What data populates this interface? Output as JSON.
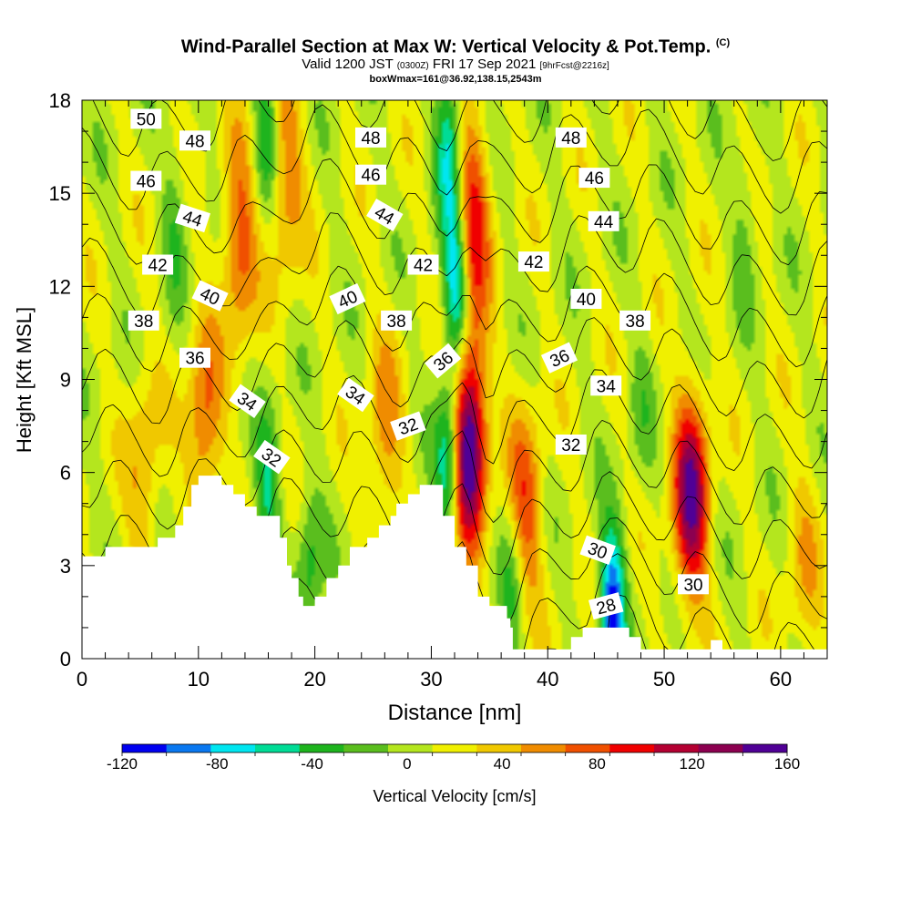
{
  "header": {
    "title_main": "Wind-Parallel Section at Max W: Vertical Velocity & Pot.Temp.",
    "title_copyright": "(C)",
    "valid_prefix": "Valid 1200 JST",
    "valid_utc": "(0300Z)",
    "valid_date": "FRI 17 Sep 2021",
    "forecast_tag": "[9hrFcst@2216z]",
    "box_info": "boxWmax=161@36.92,138.15,2543m"
  },
  "colorbar": {
    "label": "Vertical Velocity [cm/s]",
    "tick_labels": [
      "-120",
      "-80",
      "-40",
      "0",
      "40",
      "80",
      "120",
      "160"
    ],
    "colors": [
      "#0000f0",
      "#0a78f0",
      "#00e6f0",
      "#00dc96",
      "#1eb41e",
      "#5abe1e",
      "#b4e61e",
      "#f0f000",
      "#f0c800",
      "#f08c00",
      "#f05000",
      "#f00000",
      "#b40032",
      "#8c0050",
      "#500096"
    ]
  },
  "chart_data": {
    "type": "heatmap",
    "title": "Wind-Parallel Section at Max W: Vertical Velocity & Pot.Temp.",
    "xlabel": "Distance [nm]",
    "ylabel": "Height [Kft MSL]",
    "xlim": [
      0,
      64
    ],
    "ylim": [
      0,
      18
    ],
    "x_ticks": [
      "0",
      "10",
      "20",
      "30",
      "40",
      "50",
      "60"
    ],
    "y_ticks": [
      "0",
      "3",
      "6",
      "9",
      "12",
      "15",
      "18"
    ],
    "background_w": 10,
    "updrafts": [
      {
        "x": 13.5,
        "y": 13.5,
        "peak": 70
      },
      {
        "x": 10.5,
        "y": 7.5,
        "peak": 65
      },
      {
        "x": 17.5,
        "y": 15.5,
        "peak": 55
      },
      {
        "x": 26,
        "y": 7.2,
        "peak": 45
      },
      {
        "x": 33.2,
        "y": 7,
        "peak": 160
      },
      {
        "x": 33.5,
        "y": 14,
        "peak": 90
      },
      {
        "x": 52.3,
        "y": 5.2,
        "peak": 130
      },
      {
        "x": 38,
        "y": 4.8,
        "peak": 70
      },
      {
        "x": 5.3,
        "y": 6,
        "peak": 40
      },
      {
        "x": 62,
        "y": 3,
        "peak": 30
      }
    ],
    "downdrafts": [
      {
        "x": 16,
        "y": 5.5,
        "peak": -55
      },
      {
        "x": 19.5,
        "y": 2.8,
        "peak": -45
      },
      {
        "x": 15.8,
        "y": 17,
        "peak": -55
      },
      {
        "x": 31.5,
        "y": 6.5,
        "peak": -90
      },
      {
        "x": 32.2,
        "y": 12,
        "peak": -110
      },
      {
        "x": 31.5,
        "y": 16.5,
        "peak": -75
      },
      {
        "x": 45.5,
        "y": 1.6,
        "peak": -120
      },
      {
        "x": 37,
        "y": 2.5,
        "peak": -45
      },
      {
        "x": 8,
        "y": 14,
        "peak": -30
      },
      {
        "x": 57,
        "y": 14,
        "peak": -25
      },
      {
        "x": 48,
        "y": 8,
        "peak": -20
      }
    ],
    "terrain": [
      [
        0,
        3.3
      ],
      [
        2,
        3.3
      ],
      [
        2,
        3.6
      ],
      [
        6.5,
        3.6
      ],
      [
        6.5,
        3.9
      ],
      [
        8,
        3.9
      ],
      [
        8,
        4.3
      ],
      [
        8.7,
        4.3
      ],
      [
        8.7,
        4.9
      ],
      [
        9.4,
        4.9
      ],
      [
        9.4,
        5.6
      ],
      [
        10,
        5.6
      ],
      [
        10,
        5.9
      ],
      [
        12,
        5.9
      ],
      [
        12,
        5.6
      ],
      [
        13,
        5.6
      ],
      [
        13,
        5.3
      ],
      [
        14,
        5.3
      ],
      [
        14,
        4.9
      ],
      [
        15,
        4.9
      ],
      [
        15,
        4.6
      ],
      [
        17,
        4.6
      ],
      [
        17,
        3.9
      ],
      [
        17.6,
        3.9
      ],
      [
        17.6,
        3
      ],
      [
        18,
        3
      ],
      [
        18,
        2.6
      ],
      [
        18.6,
        2.6
      ],
      [
        18.6,
        2
      ],
      [
        19,
        2
      ],
      [
        19,
        1.7
      ],
      [
        20,
        1.7
      ],
      [
        20,
        2
      ],
      [
        21,
        2
      ],
      [
        21,
        2.6
      ],
      [
        22,
        2.6
      ],
      [
        22,
        3
      ],
      [
        23,
        3
      ],
      [
        23,
        3.6
      ],
      [
        24.5,
        3.6
      ],
      [
        24.5,
        3.9
      ],
      [
        25.5,
        3.9
      ],
      [
        25.5,
        4.3
      ],
      [
        26.5,
        4.3
      ],
      [
        26.5,
        4.6
      ],
      [
        27,
        4.6
      ],
      [
        27,
        5
      ],
      [
        28,
        5
      ],
      [
        28,
        5.3
      ],
      [
        29,
        5.3
      ],
      [
        29,
        5.6
      ],
      [
        31,
        5.6
      ],
      [
        31,
        4.6
      ],
      [
        32,
        4.6
      ],
      [
        32,
        3.6
      ],
      [
        33,
        3.6
      ],
      [
        33,
        3
      ],
      [
        34,
        3
      ],
      [
        34,
        2
      ],
      [
        35,
        2
      ],
      [
        35,
        1.7
      ],
      [
        36.5,
        1.7
      ],
      [
        36.5,
        1.3
      ],
      [
        36.8,
        1.3
      ],
      [
        36.8,
        1
      ],
      [
        37,
        1
      ],
      [
        37,
        0.3
      ],
      [
        42,
        0.3
      ],
      [
        42,
        0.7
      ],
      [
        43,
        0.7
      ],
      [
        43,
        1
      ],
      [
        47,
        1
      ],
      [
        47,
        0.7
      ],
      [
        48,
        0.7
      ],
      [
        48,
        0.3
      ],
      [
        54,
        0.3
      ],
      [
        54,
        0.6
      ],
      [
        55,
        0.6
      ],
      [
        55,
        0.3
      ],
      [
        64,
        0.3
      ]
    ],
    "theta_levels": [
      28,
      30,
      32,
      34,
      36,
      38,
      40,
      42,
      44,
      46,
      48,
      50
    ],
    "theta_labels": [
      {
        "text": "50",
        "x": 5.5,
        "y": 17.4,
        "angle": 0
      },
      {
        "text": "48",
        "x": 9.7,
        "y": 16.7,
        "angle": 0
      },
      {
        "text": "46",
        "x": 5.5,
        "y": 15.4,
        "angle": 0
      },
      {
        "text": "44",
        "x": 9.5,
        "y": 14.2,
        "angle": 18
      },
      {
        "text": "42",
        "x": 6.5,
        "y": 12.7,
        "angle": 0
      },
      {
        "text": "40",
        "x": 11,
        "y": 11.7,
        "angle": 25
      },
      {
        "text": "38",
        "x": 5.3,
        "y": 10.9,
        "angle": 0
      },
      {
        "text": "36",
        "x": 9.7,
        "y": 9.7,
        "angle": 0
      },
      {
        "text": "34",
        "x": 14.2,
        "y": 8.3,
        "angle": 35
      },
      {
        "text": "32",
        "x": 16.3,
        "y": 6.5,
        "angle": 35
      },
      {
        "text": "48",
        "x": 24.8,
        "y": 16.8,
        "angle": 0
      },
      {
        "text": "46",
        "x": 24.8,
        "y": 15.6,
        "angle": 0
      },
      {
        "text": "44",
        "x": 26,
        "y": 14.3,
        "angle": 30
      },
      {
        "text": "42",
        "x": 29.3,
        "y": 12.7,
        "angle": 0
      },
      {
        "text": "40",
        "x": 22.8,
        "y": 11.6,
        "angle": -25
      },
      {
        "text": "38",
        "x": 27,
        "y": 10.9,
        "angle": 0
      },
      {
        "text": "34",
        "x": 23.5,
        "y": 8.5,
        "angle": 35
      },
      {
        "text": "32",
        "x": 28,
        "y": 7.5,
        "angle": -20
      },
      {
        "text": "36",
        "x": 31,
        "y": 9.6,
        "angle": -40
      },
      {
        "text": "48",
        "x": 42,
        "y": 16.8,
        "angle": 0
      },
      {
        "text": "46",
        "x": 44,
        "y": 15.5,
        "angle": 0
      },
      {
        "text": "44",
        "x": 44.8,
        "y": 14.1,
        "angle": 0
      },
      {
        "text": "42",
        "x": 38.8,
        "y": 12.8,
        "angle": 0
      },
      {
        "text": "40",
        "x": 43.3,
        "y": 11.6,
        "angle": 0
      },
      {
        "text": "38",
        "x": 47.5,
        "y": 10.9,
        "angle": 0
      },
      {
        "text": "36",
        "x": 41,
        "y": 9.7,
        "angle": -25
      },
      {
        "text": "34",
        "x": 45,
        "y": 8.8,
        "angle": 0
      },
      {
        "text": "32",
        "x": 42,
        "y": 6.9,
        "angle": 0
      },
      {
        "text": "30",
        "x": 44.3,
        "y": 3.5,
        "angle": 20
      },
      {
        "text": "28",
        "x": 45,
        "y": 1.7,
        "angle": -15
      },
      {
        "text": "30",
        "x": 52.5,
        "y": 2.4,
        "angle": 0
      }
    ]
  }
}
